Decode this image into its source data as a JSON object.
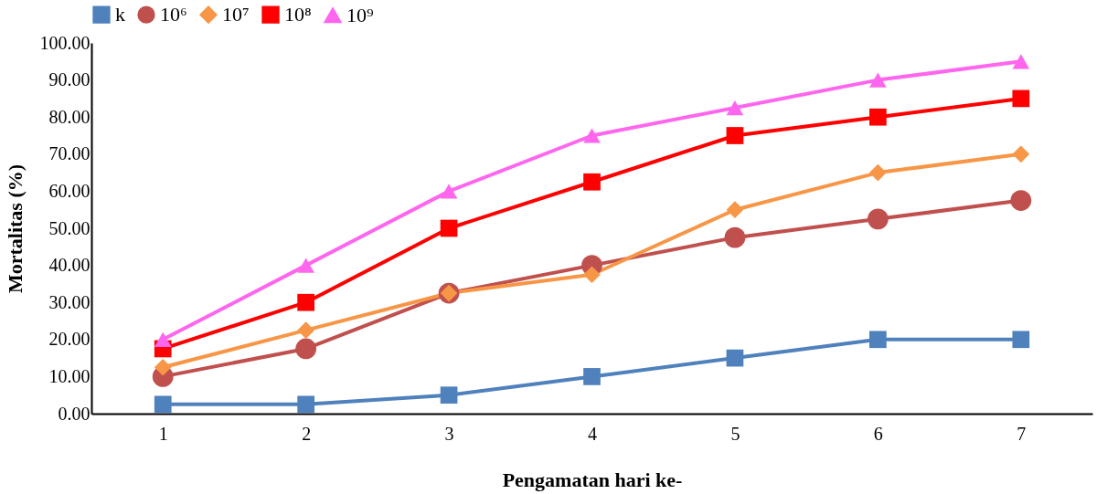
{
  "chart_data": {
    "type": "line",
    "xlabel": "Pengamatan hari ke-",
    "ylabel": "Mortalitas (%)",
    "categories": [
      "1",
      "2",
      "3",
      "4",
      "5",
      "6",
      "7"
    ],
    "ylim": [
      0,
      100
    ],
    "yticks": [
      {
        "value": 0,
        "label": "0.00"
      },
      {
        "value": 10,
        "label": "10.00"
      },
      {
        "value": 20,
        "label": "20.00"
      },
      {
        "value": 30,
        "label": "30.00"
      },
      {
        "value": 40,
        "label": "40.00"
      },
      {
        "value": 50,
        "label": "50.00"
      },
      {
        "value": 60,
        "label": "60.00"
      },
      {
        "value": 70,
        "label": "70.00"
      },
      {
        "value": 80,
        "label": "80.00"
      },
      {
        "value": 90,
        "label": "90.00"
      },
      {
        "value": 100,
        "label": "100.00"
      }
    ],
    "grid": false,
    "legend": "top",
    "line_style": "solid",
    "series": [
      {
        "name": "k",
        "color": "#4f81bd",
        "marker": "square",
        "values": [
          2.5,
          2.5,
          5,
          10,
          15,
          20,
          20
        ]
      },
      {
        "name": "10⁶",
        "color": "#c0504d",
        "marker": "circle",
        "values": [
          10,
          17.5,
          32.5,
          40,
          47.5,
          52.5,
          57.5
        ]
      },
      {
        "name": "10⁷",
        "color": "#f79646",
        "marker": "diamond",
        "values": [
          12.5,
          22.5,
          32.5,
          37.5,
          55,
          65,
          70
        ]
      },
      {
        "name": "10⁸",
        "color": "#ff0000",
        "marker": "square",
        "values": [
          17.5,
          30,
          50,
          62.5,
          75,
          80,
          85
        ]
      },
      {
        "name": "10⁹",
        "color": "#ff66ee",
        "marker": "triangle",
        "values": [
          20,
          40,
          60,
          75,
          82.5,
          90,
          95
        ]
      }
    ]
  }
}
